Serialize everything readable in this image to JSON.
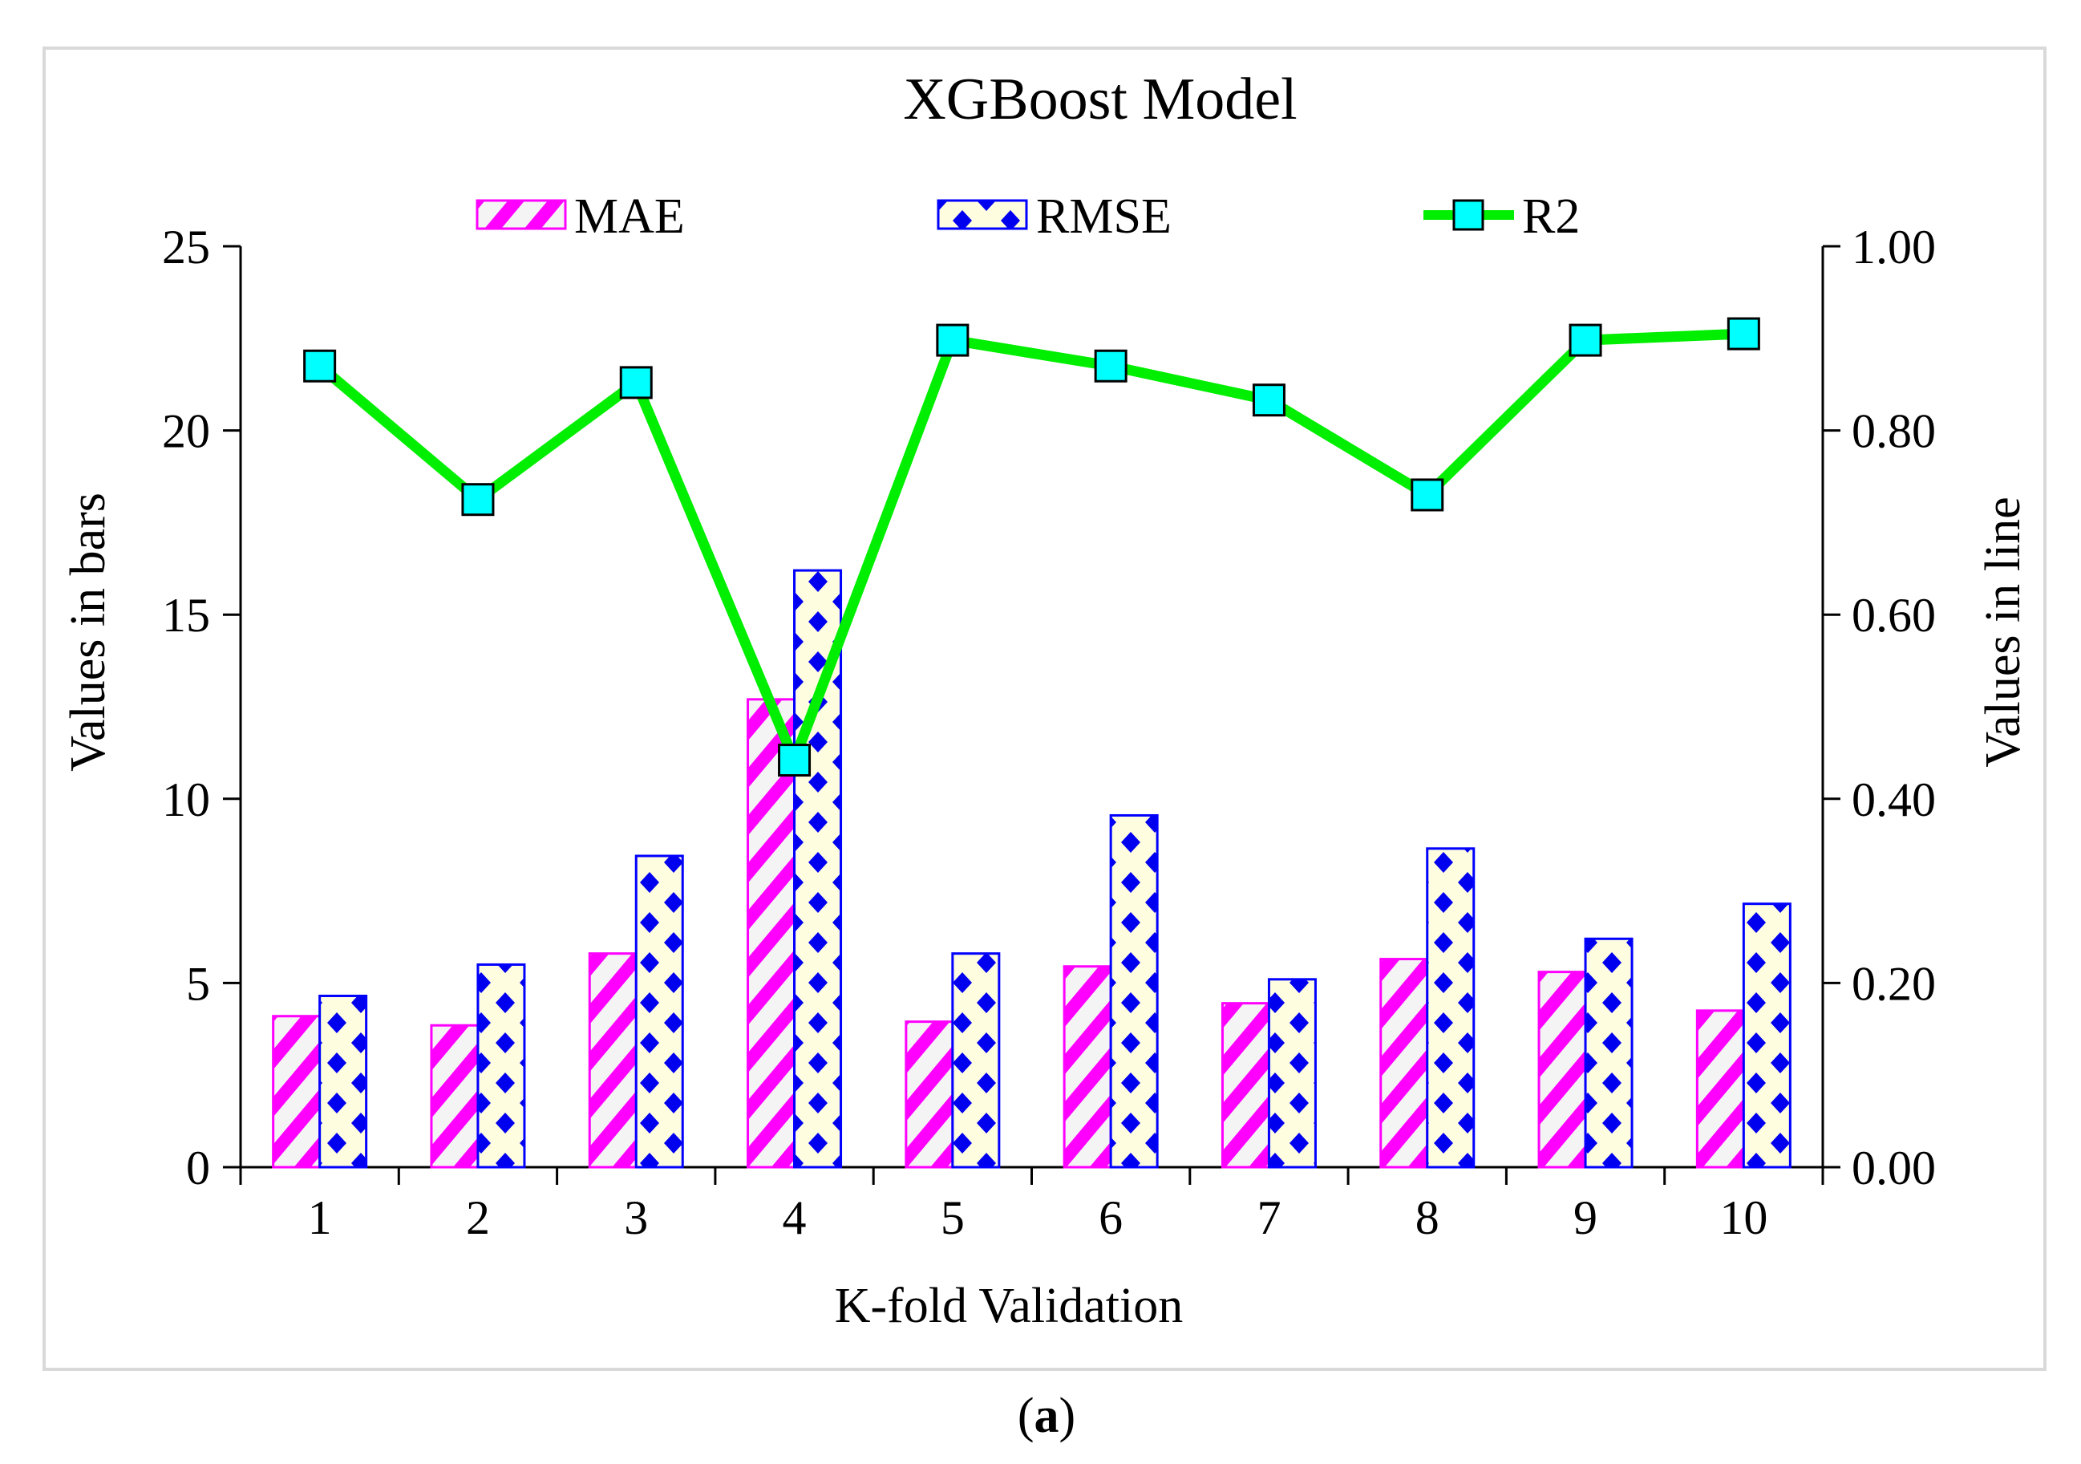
{
  "chart_data": {
    "type": "bar",
    "title": "XGBoost Model",
    "xlabel": "K-fold Validation",
    "ylabel": "Values in bars",
    "y2label": "Values in line",
    "caption_open": "(",
    "caption_letter": "a",
    "caption_close": ")",
    "categories": [
      "1",
      "2",
      "3",
      "4",
      "5",
      "6",
      "7",
      "8",
      "9",
      "10"
    ],
    "ylim": [
      0,
      25
    ],
    "yticks": [
      "0",
      "5",
      "10",
      "15",
      "20",
      "25"
    ],
    "y2lim": [
      0,
      1.0
    ],
    "y2ticks": [
      "0.00",
      "0.20",
      "0.40",
      "0.60",
      "0.80",
      "1.00"
    ],
    "series": [
      {
        "name": "MAE",
        "kind": "bar",
        "axis": "left",
        "color": "#ff00ff",
        "values": [
          4.1,
          3.85,
          5.8,
          12.7,
          3.95,
          5.45,
          4.45,
          5.65,
          5.3,
          4.25
        ]
      },
      {
        "name": "RMSE",
        "kind": "bar",
        "axis": "left",
        "color": "#0000ff",
        "values": [
          4.65,
          5.5,
          8.45,
          16.2,
          5.8,
          9.55,
          5.1,
          8.65,
          6.2,
          7.15
        ]
      },
      {
        "name": "R2",
        "kind": "line",
        "axis": "right",
        "color": "#00ee00",
        "marker_color": "#00ffff",
        "values": [
          0.87,
          0.725,
          0.852,
          0.442,
          0.898,
          0.87,
          0.833,
          0.73,
          0.898,
          0.905
        ]
      }
    ],
    "legend_position": "top-center"
  }
}
